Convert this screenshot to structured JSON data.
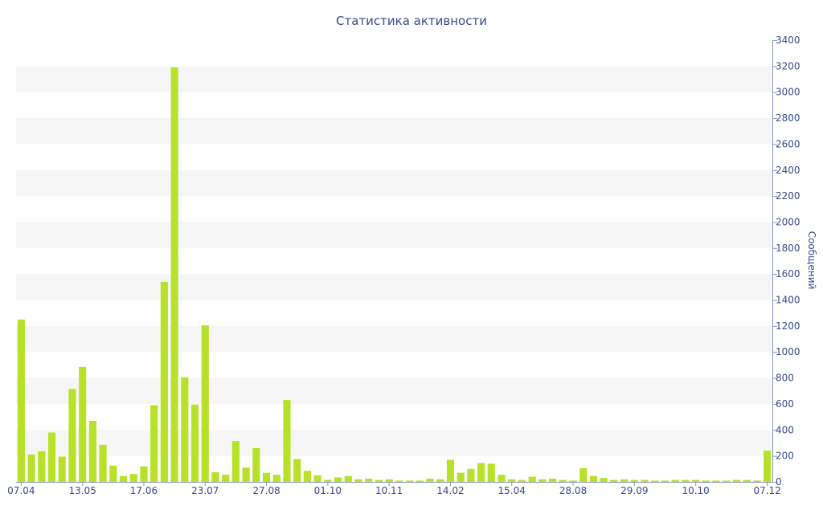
{
  "chart_data": {
    "type": "bar",
    "title": "Статистика активности",
    "xlabel": "",
    "ylabel": "Сообщений",
    "ylim": [
      0,
      3400
    ],
    "yticks": [
      0,
      200,
      400,
      600,
      800,
      1000,
      1200,
      1400,
      1600,
      1800,
      2000,
      2200,
      2400,
      2600,
      2800,
      3000,
      3200,
      3400
    ],
    "y_axis_side": "right",
    "grid": "alternating horizontal bands",
    "colors": {
      "bar": "#b8e22a",
      "band": "#f6f6f6",
      "text": "#3b4a8a",
      "axis": "#8a96bf"
    },
    "x_tick_labels": [
      {
        "label": "07.04",
        "index": 0
      },
      {
        "label": "13.05",
        "index": 6
      },
      {
        "label": "17.06",
        "index": 12
      },
      {
        "label": "23.07",
        "index": 18
      },
      {
        "label": "27.08",
        "index": 24
      },
      {
        "label": "01.10",
        "index": 30
      },
      {
        "label": "10.11",
        "index": 36
      },
      {
        "label": "14.02",
        "index": 42
      },
      {
        "label": "15.04",
        "index": 48
      },
      {
        "label": "28.08",
        "index": 54
      },
      {
        "label": "29.09",
        "index": 60
      },
      {
        "label": "10.10",
        "index": 66
      },
      {
        "label": "07.12",
        "index": 73
      }
    ],
    "values": [
      1250,
      210,
      235,
      380,
      195,
      715,
      885,
      470,
      285,
      125,
      45,
      60,
      120,
      590,
      1540,
      3190,
      805,
      595,
      1205,
      75,
      55,
      315,
      110,
      260,
      70,
      55,
      630,
      175,
      85,
      50,
      15,
      35,
      45,
      20,
      25,
      15,
      20,
      10,
      10,
      10,
      25,
      20,
      170,
      70,
      100,
      145,
      140,
      55,
      20,
      15,
      40,
      20,
      25,
      15,
      10,
      105,
      45,
      30,
      15,
      20,
      15,
      15,
      10,
      10,
      15,
      15,
      15,
      10,
      10,
      10,
      15,
      15,
      10,
      240
    ]
  }
}
